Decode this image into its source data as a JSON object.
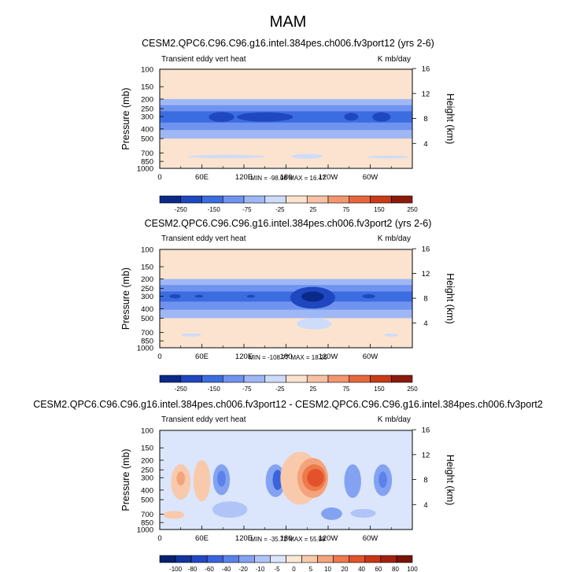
{
  "page_title": "MAM",
  "colors": {
    "background": "#ffffff",
    "axis": "#000000",
    "palette_12": [
      "#0a2a8a",
      "#1f47c0",
      "#3c6de0",
      "#6f93ef",
      "#9fb8f5",
      "#cddcf9",
      "#fbe3cf",
      "#f7c1a4",
      "#f2966f",
      "#e8663c",
      "#c83c19",
      "#8c1a0c"
    ],
    "palette_16": [
      "#06216f",
      "#13359e",
      "#2249c4",
      "#3a64dd",
      "#5a82ea",
      "#83a2f1",
      "#b0c4f7",
      "#dbe5fb",
      "#fde7d6",
      "#f9c9ac",
      "#f4a47c",
      "#ee7a4c",
      "#e3522a",
      "#c83618",
      "#a4210d",
      "#781307"
    ]
  },
  "chart_data": [
    {
      "type": "heatmap",
      "title": "CESM2.QPC6.C96.C96.g16.intel.384pes.ch006.fv3port12 (yrs 2-6)",
      "left_label": "Transient eddy vert heat",
      "right_label": "K mb/day",
      "xlabel": "",
      "ylabel": "Pressure (mb)",
      "ylabel_right": "Height (km)",
      "x_ticks": [
        "0",
        "60E",
        "120E",
        "180",
        "120W",
        "60W"
      ],
      "x_tick_values": [
        0,
        60,
        120,
        180,
        240,
        300
      ],
      "xlim": [
        0,
        360
      ],
      "y_ticks": [
        "100",
        "150",
        "200",
        "250",
        "300",
        "400",
        "500",
        "700",
        "850",
        "1000"
      ],
      "y_tick_values": [
        100,
        150,
        200,
        250,
        300,
        400,
        500,
        700,
        850,
        1000
      ],
      "ylim": [
        100,
        1000
      ],
      "y_right_ticks": [
        "16",
        "12",
        "8",
        "4"
      ],
      "y_right_values": [
        16,
        12,
        8,
        4
      ],
      "minmax_text": "MIN = -98.06   MAX = 16.47",
      "min": -98.06,
      "max": 16.47,
      "colorbar_levels": [
        "-250",
        "-150",
        "-75",
        "-25",
        "25",
        "75",
        "150",
        "250"
      ],
      "colorbar_level_values": [
        -250,
        -150,
        -75,
        -25,
        25,
        75,
        150,
        250
      ],
      "bands": [
        {
          "p_top": 200,
          "p_bot": 500,
          "level": 4
        },
        {
          "p_top": 230,
          "p_bot": 410,
          "level": 3
        },
        {
          "p_top": 265,
          "p_bot": 345,
          "level": 2
        }
      ],
      "blobs": [
        {
          "lon": 28,
          "p": 300,
          "dlon": 10,
          "ptop": 290,
          "pbot": 310,
          "level": 2
        },
        {
          "lon": 88,
          "p": 300,
          "dlon": 18,
          "ptop": 270,
          "pbot": 340,
          "level": 1
        },
        {
          "lon": 150,
          "p": 300,
          "dlon": 40,
          "ptop": 272,
          "pbot": 338,
          "level": 1
        },
        {
          "lon": 273,
          "p": 300,
          "dlon": 10,
          "ptop": 275,
          "pbot": 330,
          "level": 1
        },
        {
          "lon": 316,
          "p": 300,
          "dlon": 13,
          "ptop": 272,
          "pbot": 338,
          "level": 1
        },
        {
          "lon": 95,
          "p": 760,
          "dlon": 55,
          "ptop": 730,
          "pbot": 790,
          "level": 5
        },
        {
          "lon": 210,
          "p": 760,
          "dlon": 22,
          "ptop": 715,
          "pbot": 800,
          "level": 5
        },
        {
          "lon": 325,
          "p": 770,
          "dlon": 30,
          "ptop": 745,
          "pbot": 795,
          "level": 5
        }
      ]
    },
    {
      "type": "heatmap",
      "title": "CESM2.QPC6.C96.C96.g16.intel.384pes.ch006.fv3port2 (yrs 2-6)",
      "left_label": "Transient eddy vert heat",
      "right_label": "K mb/day",
      "xlabel": "",
      "ylabel": "Pressure (mb)",
      "ylabel_right": "Height (km)",
      "x_ticks": [
        "0",
        "60E",
        "120E",
        "180",
        "120W",
        "60W"
      ],
      "x_tick_values": [
        0,
        60,
        120,
        180,
        240,
        300
      ],
      "xlim": [
        0,
        360
      ],
      "y_ticks": [
        "100",
        "150",
        "200",
        "250",
        "300",
        "400",
        "500",
        "700",
        "850",
        "1000"
      ],
      "y_tick_values": [
        100,
        150,
        200,
        250,
        300,
        400,
        500,
        700,
        850,
        1000
      ],
      "ylim": [
        100,
        1000
      ],
      "y_right_ticks": [
        "16",
        "12",
        "8",
        "4"
      ],
      "y_right_values": [
        16,
        12,
        8,
        4
      ],
      "minmax_text": "MIN = -108.77   MAX = 18.25",
      "min": -108.77,
      "max": 18.25,
      "colorbar_levels": [
        "-250",
        "-150",
        "-75",
        "-25",
        "25",
        "75",
        "150",
        "250"
      ],
      "colorbar_level_values": [
        -250,
        -150,
        -75,
        -25,
        25,
        75,
        150,
        250
      ],
      "bands": [
        {
          "p_top": 200,
          "p_bot": 500,
          "level": 4
        },
        {
          "p_top": 230,
          "p_bot": 410,
          "level": 3
        },
        {
          "p_top": 268,
          "p_bot": 340,
          "level": 2
        }
      ],
      "blobs": [
        {
          "lon": 22,
          "p": 300,
          "dlon": 8,
          "ptop": 285,
          "pbot": 315,
          "level": 1
        },
        {
          "lon": 56,
          "p": 300,
          "dlon": 6,
          "ptop": 290,
          "pbot": 310,
          "level": 1
        },
        {
          "lon": 130,
          "p": 300,
          "dlon": 6,
          "ptop": 290,
          "pbot": 310,
          "level": 1
        },
        {
          "lon": 218,
          "p": 300,
          "dlon": 32,
          "ptop": 240,
          "pbot": 400,
          "level": 1
        },
        {
          "lon": 218,
          "p": 300,
          "dlon": 16,
          "ptop": 268,
          "pbot": 340,
          "level": 0
        },
        {
          "lon": 298,
          "p": 300,
          "dlon": 9,
          "ptop": 285,
          "pbot": 315,
          "level": 1
        },
        {
          "lon": 220,
          "p": 560,
          "dlon": 25,
          "ptop": 500,
          "pbot": 650,
          "level": 5
        },
        {
          "lon": 45,
          "p": 740,
          "dlon": 14,
          "ptop": 715,
          "pbot": 770,
          "level": 5
        },
        {
          "lon": 330,
          "p": 740,
          "dlon": 10,
          "ptop": 715,
          "pbot": 770,
          "level": 5
        }
      ]
    },
    {
      "type": "heatmap",
      "title": "CESM2.QPC6.C96.C96.g16.intel.384pes.ch006.fv3port12 - CESM2.QPC6.C96.C96.g16.intel.384pes.ch006.fv3port2",
      "left_label": "Transient eddy vert heat",
      "right_label": "K mb/day",
      "xlabel": "",
      "ylabel": "Pressure (mb)",
      "ylabel_right": "Height (km)",
      "x_ticks": [
        "0",
        "60E",
        "120E",
        "180",
        "120W",
        "60W"
      ],
      "x_tick_values": [
        0,
        60,
        120,
        180,
        240,
        300
      ],
      "xlim": [
        0,
        360
      ],
      "y_ticks": [
        "100",
        "150",
        "200",
        "250",
        "300",
        "400",
        "500",
        "700",
        "850",
        "1000"
      ],
      "y_tick_values": [
        100,
        150,
        200,
        250,
        300,
        400,
        500,
        700,
        850,
        1000
      ],
      "ylim": [
        100,
        1000
      ],
      "y_right_ticks": [
        "16",
        "12",
        "8",
        "4"
      ],
      "y_right_values": [
        16,
        12,
        8,
        4
      ],
      "minmax_text": "MIN = -35.72   MAX = 55.88",
      "min": -35.72,
      "max": 55.88,
      "colorbar_levels": [
        "-100",
        "-80",
        "-60",
        "-40",
        "-20",
        "-10",
        "-5",
        "0",
        "5",
        "10",
        "20",
        "40",
        "60",
        "80",
        "100"
      ],
      "colorbar_level_values": [
        -100,
        -80,
        -60,
        -40,
        -20,
        -10,
        -5,
        0,
        5,
        10,
        20,
        40,
        60,
        80,
        100
      ],
      "bands": [
        {
          "p_top": 170,
          "p_bot": 850,
          "level": 7
        }
      ],
      "blobs": [
        {
          "lon": 30,
          "p": 320,
          "dlon": 14,
          "ptop": 220,
          "pbot": 500,
          "level": 9
        },
        {
          "lon": 30,
          "p": 300,
          "dlon": 6,
          "ptop": 260,
          "pbot": 360,
          "level": 10
        },
        {
          "lon": 60,
          "p": 330,
          "dlon": 12,
          "ptop": 200,
          "pbot": 520,
          "level": 9
        },
        {
          "lon": 88,
          "p": 310,
          "dlon": 12,
          "ptop": 220,
          "pbot": 450,
          "level": 5
        },
        {
          "lon": 88,
          "p": 300,
          "dlon": 6,
          "ptop": 255,
          "pbot": 370,
          "level": 4
        },
        {
          "lon": 165,
          "p": 310,
          "dlon": 14,
          "ptop": 220,
          "pbot": 470,
          "level": 5
        },
        {
          "lon": 168,
          "p": 305,
          "dlon": 7,
          "ptop": 250,
          "pbot": 400,
          "level": 3
        },
        {
          "lon": 200,
          "p": 300,
          "dlon": 28,
          "ptop": 165,
          "pbot": 560,
          "level": 9
        },
        {
          "lon": 218,
          "p": 300,
          "dlon": 22,
          "ptop": 190,
          "pbot": 480,
          "level": 10
        },
        {
          "lon": 220,
          "p": 300,
          "dlon": 17,
          "ptop": 220,
          "pbot": 410,
          "level": 11
        },
        {
          "lon": 222,
          "p": 305,
          "dlon": 12,
          "ptop": 245,
          "pbot": 370,
          "level": 12
        },
        {
          "lon": 245,
          "p": 700,
          "dlon": 15,
          "ptop": 600,
          "pbot": 800,
          "level": 5
        },
        {
          "lon": 275,
          "p": 330,
          "dlon": 12,
          "ptop": 220,
          "pbot": 480,
          "level": 5
        },
        {
          "lon": 318,
          "p": 320,
          "dlon": 13,
          "ptop": 220,
          "pbot": 460,
          "level": 5
        },
        {
          "lon": 318,
          "p": 305,
          "dlon": 6,
          "ptop": 260,
          "pbot": 380,
          "level": 4
        },
        {
          "lon": 290,
          "p": 700,
          "dlon": 18,
          "ptop": 620,
          "pbot": 760,
          "level": 6
        },
        {
          "lon": 100,
          "p": 620,
          "dlon": 25,
          "ptop": 520,
          "pbot": 760,
          "level": 6
        },
        {
          "lon": 20,
          "p": 720,
          "dlon": 15,
          "ptop": 650,
          "pbot": 780,
          "level": 9
        }
      ]
    }
  ]
}
